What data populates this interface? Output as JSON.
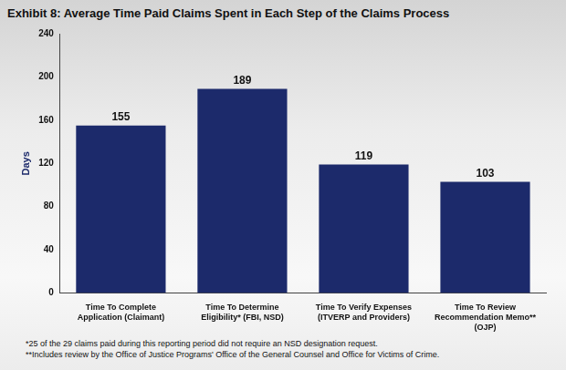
{
  "chart_data": {
    "type": "bar",
    "title": "Exhibit 8: Average Time Paid Claims Spent in Each Step of the Claims Process",
    "y_label": "Days",
    "categories": [
      [
        "Time To Complete",
        "Application (Claimant)"
      ],
      [
        "Time To Determine",
        "Eligibility* (FBI, NSD)"
      ],
      [
        "Time To Verify Expenses",
        "(ITVERP and Providers)"
      ],
      [
        "Time To Review",
        "Recommendation Memo**",
        "(OJP)"
      ]
    ],
    "values": [
      155,
      189,
      119,
      103
    ],
    "color": "#1c2a6b",
    "ylim": [
      0,
      240
    ],
    "yticks": [
      0,
      40,
      80,
      120,
      160,
      200,
      240
    ],
    "grid": false,
    "data_labels": true,
    "notes": [
      "*25 of the 29 claims paid during this reporting period did not require an NSD designation request.",
      "**Includes review by the Office of Justice Programs' Office of the General Counsel and Office for Victims of Crime."
    ]
  }
}
